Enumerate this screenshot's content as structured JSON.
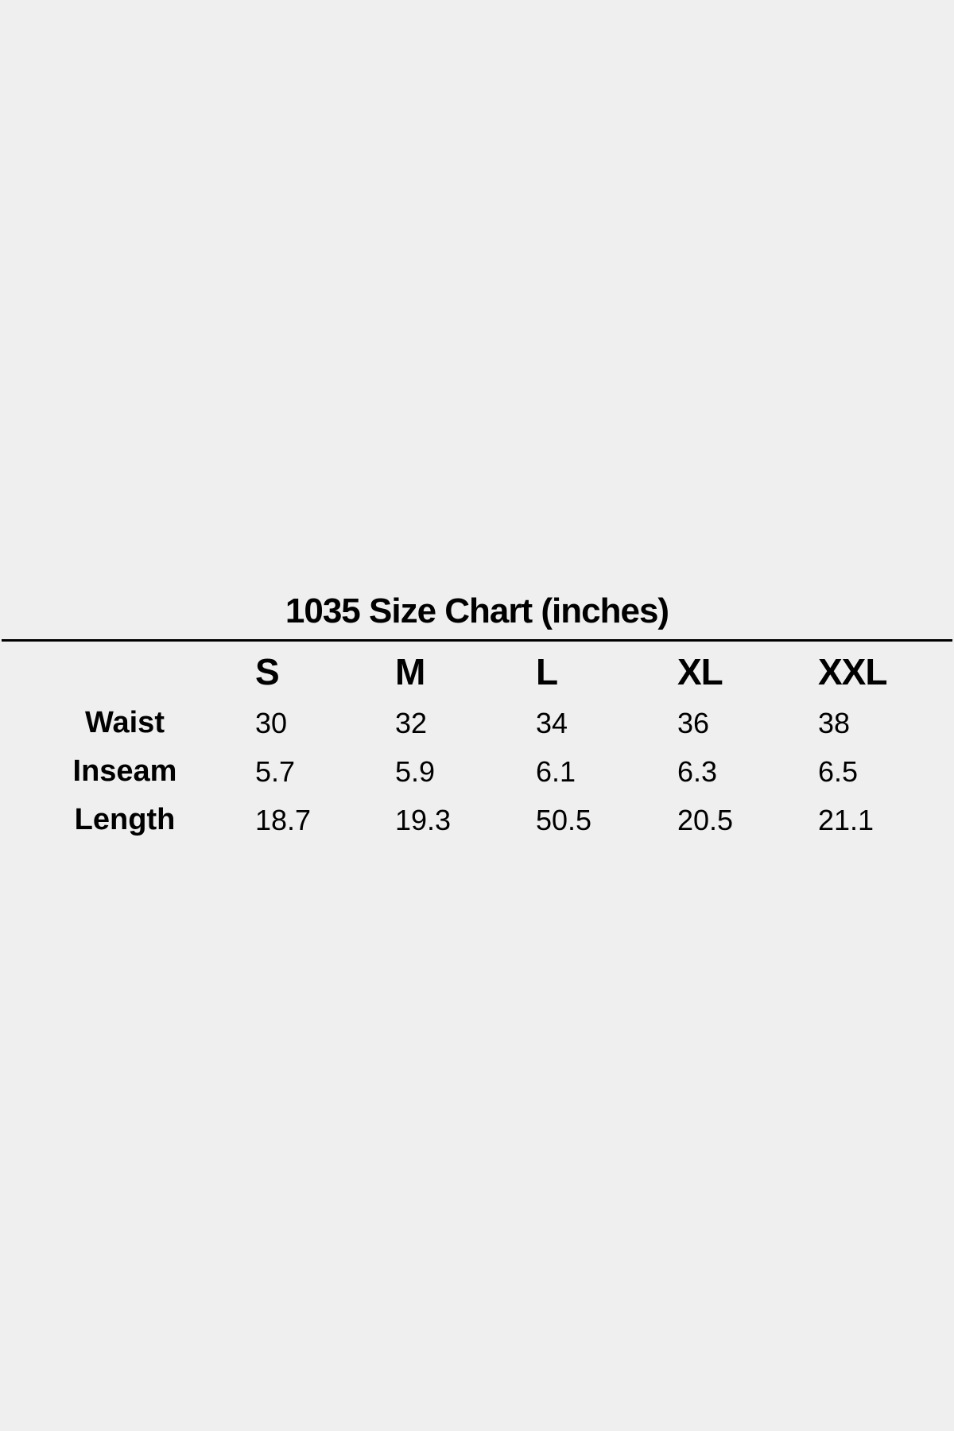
{
  "title": "1035 Size Chart (inches)",
  "columns": [
    "S",
    "M",
    "L",
    "XL",
    "XXL"
  ],
  "rows": [
    {
      "label": "Waist",
      "values": [
        "30",
        "32",
        "34",
        "36",
        "38"
      ]
    },
    {
      "label": "Inseam",
      "values": [
        "5.7",
        "5.9",
        "6.1",
        "6.3",
        "6.5"
      ]
    },
    {
      "label": "Length",
      "values": [
        "18.7",
        "19.3",
        "50.5",
        "20.5",
        "21.1"
      ]
    }
  ]
}
